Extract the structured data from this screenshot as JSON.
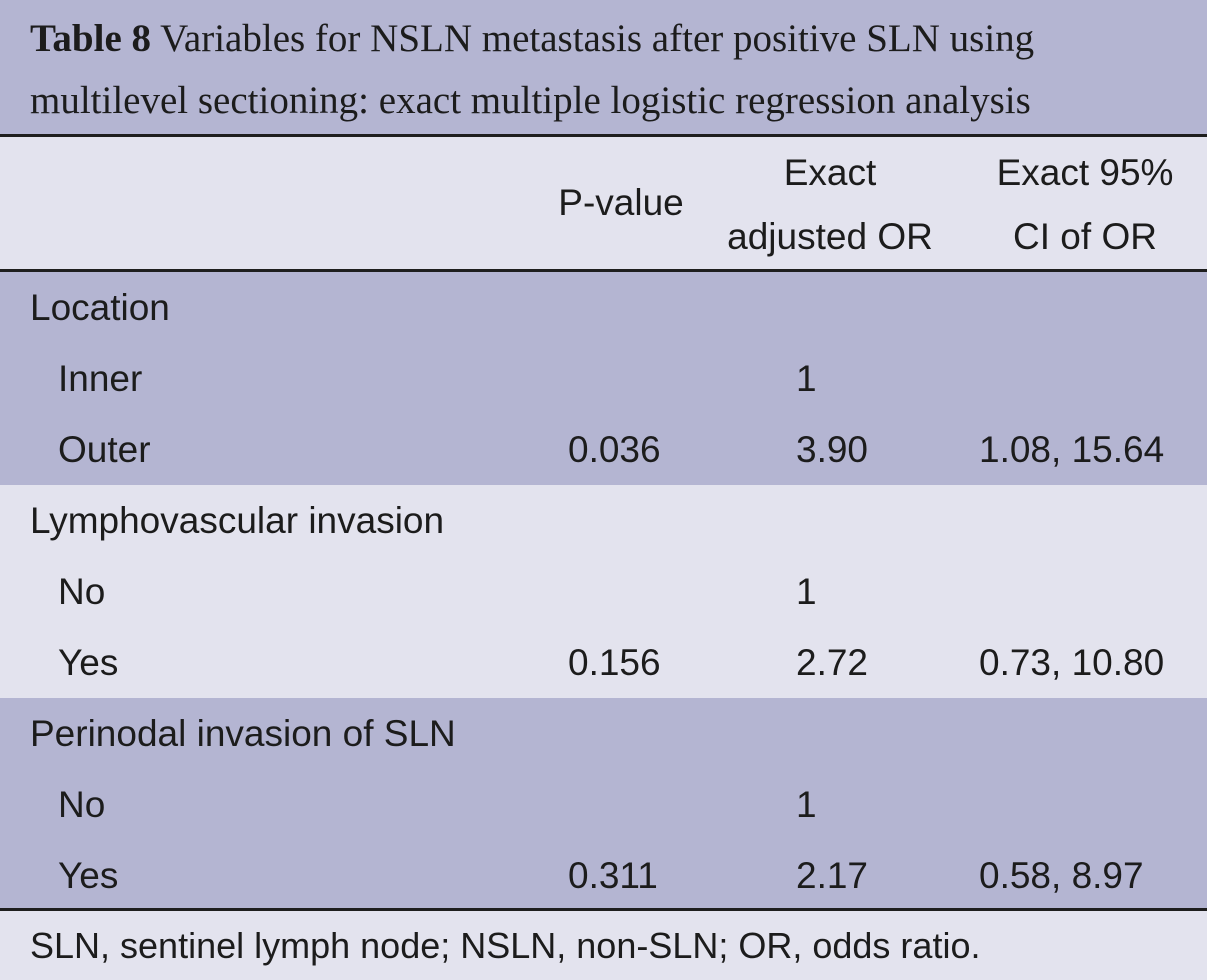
{
  "caption": {
    "label": "Table 8",
    "line1": "Variables for NSLN metastasis after positive SLN using",
    "line2": "multilevel sectioning: exact multiple logistic regression analysis"
  },
  "header": {
    "col_pvalue": "P-value",
    "col_or_line1": "Exact",
    "col_or_line2": "adjusted OR",
    "col_ci_line1": "Exact 95%",
    "col_ci_line2": "CI of OR"
  },
  "groups": [
    {
      "title": "Location",
      "rows": [
        {
          "label": "Inner",
          "pvalue": "",
          "or": "1",
          "ci": ""
        },
        {
          "label": "Outer",
          "pvalue": "0.036",
          "or": "3.90",
          "ci": "1.08, 15.64"
        }
      ]
    },
    {
      "title": "Lymphovascular invasion",
      "rows": [
        {
          "label": "No",
          "pvalue": "",
          "or": "1",
          "ci": ""
        },
        {
          "label": "Yes",
          "pvalue": "0.156",
          "or": "2.72",
          "ci": "0.73, 10.80"
        }
      ]
    },
    {
      "title": "Perinodal invasion of SLN",
      "rows": [
        {
          "label": "No",
          "pvalue": "",
          "or": "1",
          "ci": ""
        },
        {
          "label": "Yes",
          "pvalue": "0.311",
          "or": "2.17",
          "ci": "0.58, 8.97"
        }
      ]
    }
  ],
  "footnote": "SLN, sentinel lymph node; NSLN, non-SLN; OR, odds ratio.",
  "colors": {
    "band_dark": "#b4b5d2",
    "band_light": "#e3e3ee",
    "rule": "#1e1e1e",
    "text": "#1c1c1c"
  }
}
